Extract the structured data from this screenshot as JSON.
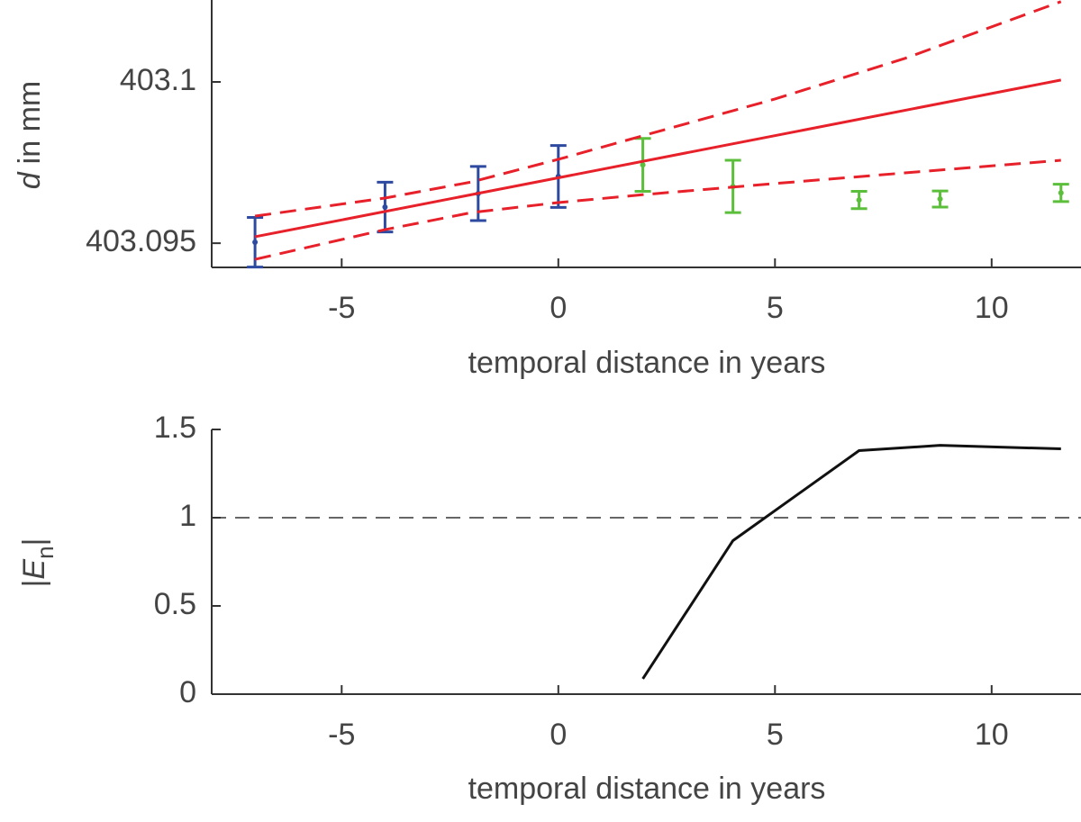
{
  "chart_data": [
    {
      "type": "errorbar",
      "ylabel_var": "d",
      "ylabel": "in mm",
      "xlabel": "temporal distance in years",
      "xlim": [
        -8,
        12
      ],
      "ylim": [
        403.09425,
        403.10254
      ],
      "xticks": [
        -5,
        0,
        5,
        10
      ],
      "yticks": [
        403.095,
        403.1
      ],
      "series": [
        {
          "color": "#2d4aa0",
          "x": [
            -7,
            -4,
            -1.85,
            0
          ],
          "values": [
            403.09503,
            403.09612,
            403.09654,
            403.09707
          ],
          "errors": [
            0.00077,
            0.00077,
            0.00084,
            0.00096
          ]
        },
        {
          "color": "#5cbf3c",
          "x": [
            1.95,
            4.03,
            6.94,
            8.81,
            11.6
          ],
          "values": [
            403.09743,
            403.09676,
            403.09634,
            403.09637,
            403.09656
          ],
          "errors": [
            0.00082,
            0.00081,
            0.00027,
            0.00025,
            0.00027
          ]
        }
      ],
      "fit": {
        "color": "#e8202a",
        "x": [
          -7,
          11.6
        ],
        "values": [
          403.0952,
          403.10006
        ]
      },
      "bands": [
        {
          "color": "#e8202a",
          "x": [
            -7,
            -4,
            -2,
            0,
            2,
            5,
            8,
            11.6
          ],
          "values": [
            403.09584,
            403.0964,
            403.0969,
            403.0976,
            403.09835,
            403.09947,
            403.10073,
            403.10249
          ]
        },
        {
          "color": "#e8202a",
          "x": [
            -7,
            -4,
            -2,
            0,
            2,
            5,
            8,
            11.6
          ],
          "values": [
            403.0945,
            403.09542,
            403.09595,
            403.09626,
            403.09651,
            403.09685,
            403.09718,
            403.09757
          ]
        }
      ]
    },
    {
      "type": "line",
      "ylabel_parts": [
        "|",
        "E",
        "n",
        "|"
      ],
      "xlabel": "temporal distance in years",
      "xlim": [
        -8,
        12
      ],
      "ylim": [
        0,
        1.5
      ],
      "xticks": [
        -5,
        0,
        5,
        10
      ],
      "yticks": [
        0,
        0.5,
        1,
        1.5
      ],
      "hline": 1,
      "series": [
        {
          "color": "#111111",
          "x": [
            1.95,
            4.03,
            6.94,
            8.81,
            11.6
          ],
          "values": [
            0.087,
            0.87,
            1.38,
            1.41,
            1.39
          ]
        }
      ]
    }
  ]
}
